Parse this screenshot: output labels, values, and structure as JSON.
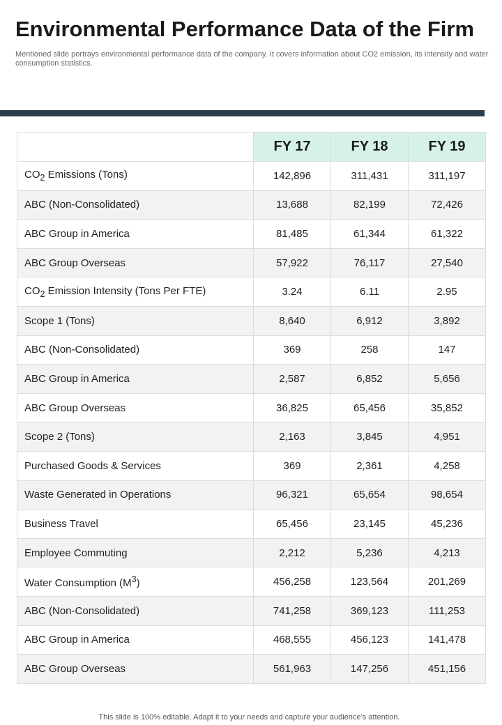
{
  "title": "Environmental Performance Data of the Firm",
  "subtitle": "Mentioned slide portrays environmental performance data of the company. It covers information about CO2 emission, its intensity and water consumption statistics.",
  "table": {
    "headers": [
      "FY 17",
      "FY 18",
      "FY 19"
    ],
    "rows": [
      {
        "label": "CO",
        "sub": "2",
        "rest": " Emissions (Tons)",
        "values": [
          "142,896",
          "311,431",
          "311,197"
        ]
      },
      {
        "label": "ABC (Non-Consolidated)",
        "values": [
          "13,688",
          "82,199",
          "72,426"
        ]
      },
      {
        "label": "ABC Group  in America",
        "values": [
          "81,485",
          "61,344",
          "61,322"
        ]
      },
      {
        "label": "ABC Group  Overseas",
        "values": [
          "57,922",
          "76,117",
          "27,540"
        ]
      },
      {
        "label": "CO",
        "sub": "2",
        "rest": " Emission Intensity  (Tons Per FTE)",
        "values": [
          "3.24",
          "6.11",
          "2.95"
        ]
      },
      {
        "label": "Scope 1 (Tons)",
        "values": [
          "8,640",
          "6,912",
          "3,892"
        ]
      },
      {
        "label": "ABC (Non-Consolidated)",
        "values": [
          "369",
          "258",
          "147"
        ]
      },
      {
        "label": "ABC Group  in America",
        "values": [
          "2,587",
          "6,852",
          "5,656"
        ]
      },
      {
        "label": "ABC Group  Overseas",
        "values": [
          "36,825",
          "65,456",
          "35,852"
        ]
      },
      {
        "label": "Scope 2 (Tons)",
        "values": [
          "2,163",
          "3,845",
          "4,951"
        ]
      },
      {
        "label": "Purchased Goods & Services",
        "values": [
          "369",
          "2,361",
          "4,258"
        ]
      },
      {
        "label": "Waste Generated in Operations",
        "values": [
          "96,321",
          "65,654",
          "98,654"
        ]
      },
      {
        "label": "Business Travel",
        "values": [
          "65,456",
          "23,145",
          "45,236"
        ]
      },
      {
        "label": "Employee Commuting",
        "values": [
          "2,212",
          "5,236",
          "4,213"
        ]
      },
      {
        "label": "Water Consumption (M",
        "sup": "3",
        "rest": ")",
        "values": [
          "456,258",
          "123,564",
          "201,269"
        ]
      },
      {
        "label": "ABC (Non-Consolidated)",
        "values": [
          "741,258",
          "369,123",
          "111,253"
        ]
      },
      {
        "label": "ABC Group  in America",
        "values": [
          "468,555",
          "456,123",
          "141,478"
        ]
      },
      {
        "label": "ABC Group  Overseas",
        "values": [
          "561,963",
          "147,256",
          "451,156"
        ]
      }
    ]
  },
  "footer": "This slide is 100% editable. Adapt it to your needs and capture your audience’s attention.",
  "colors": {
    "header_bar": "#2c3e4c",
    "header_cell": "#d6f1ea",
    "stripe": "#f2f2f2"
  }
}
